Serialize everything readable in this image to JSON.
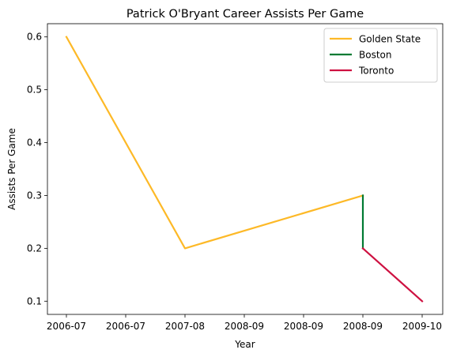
{
  "chart_data": {
    "type": "line",
    "title": "Patrick O'Bryant Career Assists Per Game",
    "xlabel": "Year",
    "ylabel": "Assists Per Game",
    "x_tick_labels": [
      "2006-07",
      "2006-07",
      "2007-08",
      "2008-09",
      "2008-09",
      "2008-09",
      "2009-10"
    ],
    "y_ticks": [
      0.1,
      0.2,
      0.3,
      0.4,
      0.5,
      0.6
    ],
    "y_tick_labels": [
      "0.1",
      "0.2",
      "0.3",
      "0.4",
      "0.5",
      "0.6"
    ],
    "ylim": [
      0.075,
      0.625
    ],
    "grid": false,
    "legend_position": "top-right",
    "series": [
      {
        "name": "Golden State",
        "color": "#FDB927",
        "points": [
          {
            "x": "2006-07",
            "y": 0.6
          },
          {
            "x": "2007-08",
            "y": 0.2
          },
          {
            "x": "2008-09",
            "y": 0.3
          }
        ]
      },
      {
        "name": "Boston",
        "color": "#007A33",
        "points": [
          {
            "x": "2008-09",
            "y": 0.3
          },
          {
            "x": "2008-09",
            "y": 0.2
          }
        ]
      },
      {
        "name": "Toronto",
        "color": "#CE1141",
        "points": [
          {
            "x": "2008-09",
            "y": 0.2
          },
          {
            "x": "2009-10",
            "y": 0.1
          }
        ]
      }
    ]
  }
}
